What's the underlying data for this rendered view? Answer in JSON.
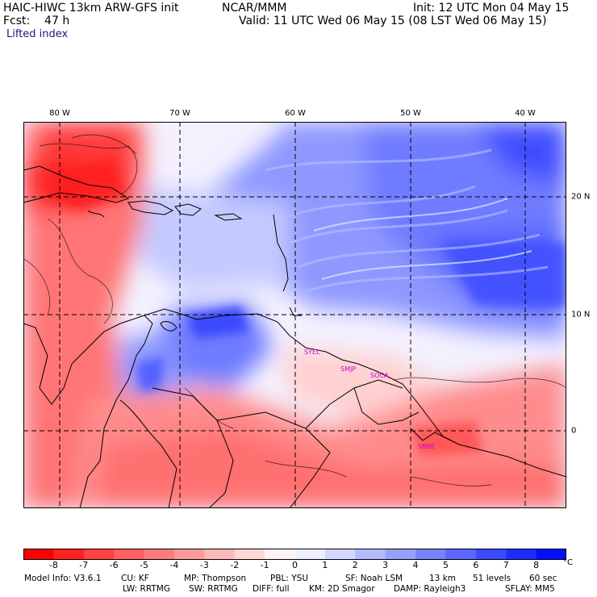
{
  "header": {
    "model": "HAIC-HIWC 13km ARW-GFS init",
    "org": "NCAR/MMM",
    "init": "Init: 12 UTC Mon 04 May 15",
    "fcst": "Fcst:    47 h",
    "valid": "Valid: 11 UTC Wed 06 May 15 (08 LST Wed 06 May 15)",
    "field": "Lifted index"
  },
  "map": {
    "lon_labels": [
      "80 W",
      "70 W",
      "60 W",
      "50 W",
      "40 W"
    ],
    "lat_labels": [
      "20 N",
      "10 N",
      "0"
    ],
    "grid_lon": [
      -80,
      -70,
      -60,
      -50,
      -40
    ],
    "grid_lat": [
      20,
      10,
      0
    ],
    "extent": {
      "lon_min": -83,
      "lon_max": -37.5,
      "lat_min": -6.5,
      "lat_max": 26.5
    },
    "stations": [
      "SYEL",
      "SMJP",
      "SOCA",
      "SBBE"
    ]
  },
  "colorbar": {
    "unit": "°C",
    "ticks": [
      "-8",
      "-7",
      "-6",
      "-5",
      "-4",
      "-3",
      "-2",
      "-1",
      "0",
      "1",
      "2",
      "3",
      "4",
      "5",
      "6",
      "7",
      "8"
    ],
    "colors": [
      "#ff0000",
      "#ff2020",
      "#ff4141",
      "#ff5f5f",
      "#ff7d7d",
      "#ff9b9b",
      "#ffb9b9",
      "#ffd7d7",
      "#fff2f2",
      "#eef0ff",
      "#d2d7ff",
      "#b4bcff",
      "#96a0ff",
      "#7883ff",
      "#5a66ff",
      "#3c4aff",
      "#1e2dff",
      "#0010ff"
    ]
  },
  "footer": {
    "model_info": "Model Info: V3.6.1",
    "cu": "CU: KF",
    "mp": "MP: Thompson",
    "pbl": "PBL: YSU",
    "sf": "SF: Noah LSM",
    "res": "13 km",
    "levels": "51 levels",
    "dt": "60 sec",
    "lw": "LW: RRTMG",
    "sw": "SW: RRTMG",
    "diff": "DIFF: full",
    "km": "KM: 2D Smagor",
    "damp": "DAMP: Rayleigh3",
    "sflay": "SFLAY: MM5"
  }
}
